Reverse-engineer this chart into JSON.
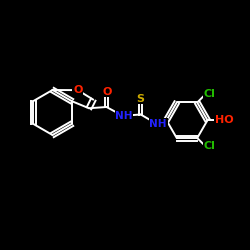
{
  "bg_color": "#000000",
  "bond_color": "#ffffff",
  "atom_colors": {
    "O": "#ff2200",
    "S": "#ccaa00",
    "N": "#2222ff",
    "Cl": "#22bb00",
    "H": "#ffffff",
    "C": "#ffffff"
  },
  "figsize": [
    2.5,
    2.5
  ],
  "dpi": 100,
  "xlim": [
    0,
    10
  ],
  "ylim": [
    0,
    10
  ]
}
